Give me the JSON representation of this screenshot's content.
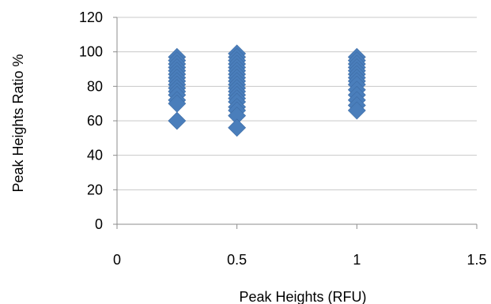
{
  "chart_data": {
    "type": "scatter",
    "title": "",
    "xlabel": "Peak Heights (RFU)",
    "ylabel": "Peak Heights Ratio %",
    "xlim": [
      0,
      1.5
    ],
    "ylim": [
      0,
      120
    ],
    "xticks": [
      "0",
      "0.5",
      "1",
      "1.5"
    ],
    "yticks": [
      "0",
      "20",
      "40",
      "60",
      "80",
      "100",
      "120"
    ],
    "grid": {
      "horizontal": true,
      "vertical": false
    },
    "legend": "none",
    "marker": "diamond",
    "color": "#4a7ebb",
    "series": [
      {
        "x": [
          0.25,
          0.25,
          0.25,
          0.25,
          0.25,
          0.25,
          0.25,
          0.25,
          0.25,
          0.25,
          0.25,
          0.25,
          0.25,
          0.25,
          0.25,
          0.5,
          0.5,
          0.5,
          0.5,
          0.5,
          0.5,
          0.5,
          0.5,
          0.5,
          0.5,
          0.5,
          0.5,
          0.5,
          0.5,
          0.5,
          0.5,
          0.5,
          0.5,
          0.5,
          1,
          1,
          1,
          1,
          1,
          1,
          1,
          1,
          1,
          1,
          1,
          1,
          1,
          1
        ],
        "y": [
          97,
          95,
          93,
          91,
          89,
          87,
          85,
          83,
          81,
          79,
          77,
          75,
          72,
          70,
          60,
          99,
          97,
          95,
          93,
          91,
          89,
          87,
          85,
          83,
          81,
          79,
          77,
          75,
          73,
          71,
          68,
          66,
          63,
          56,
          97,
          95,
          93,
          91,
          89,
          87,
          85,
          83,
          81,
          78,
          75,
          72,
          69,
          66
        ]
      }
    ]
  }
}
